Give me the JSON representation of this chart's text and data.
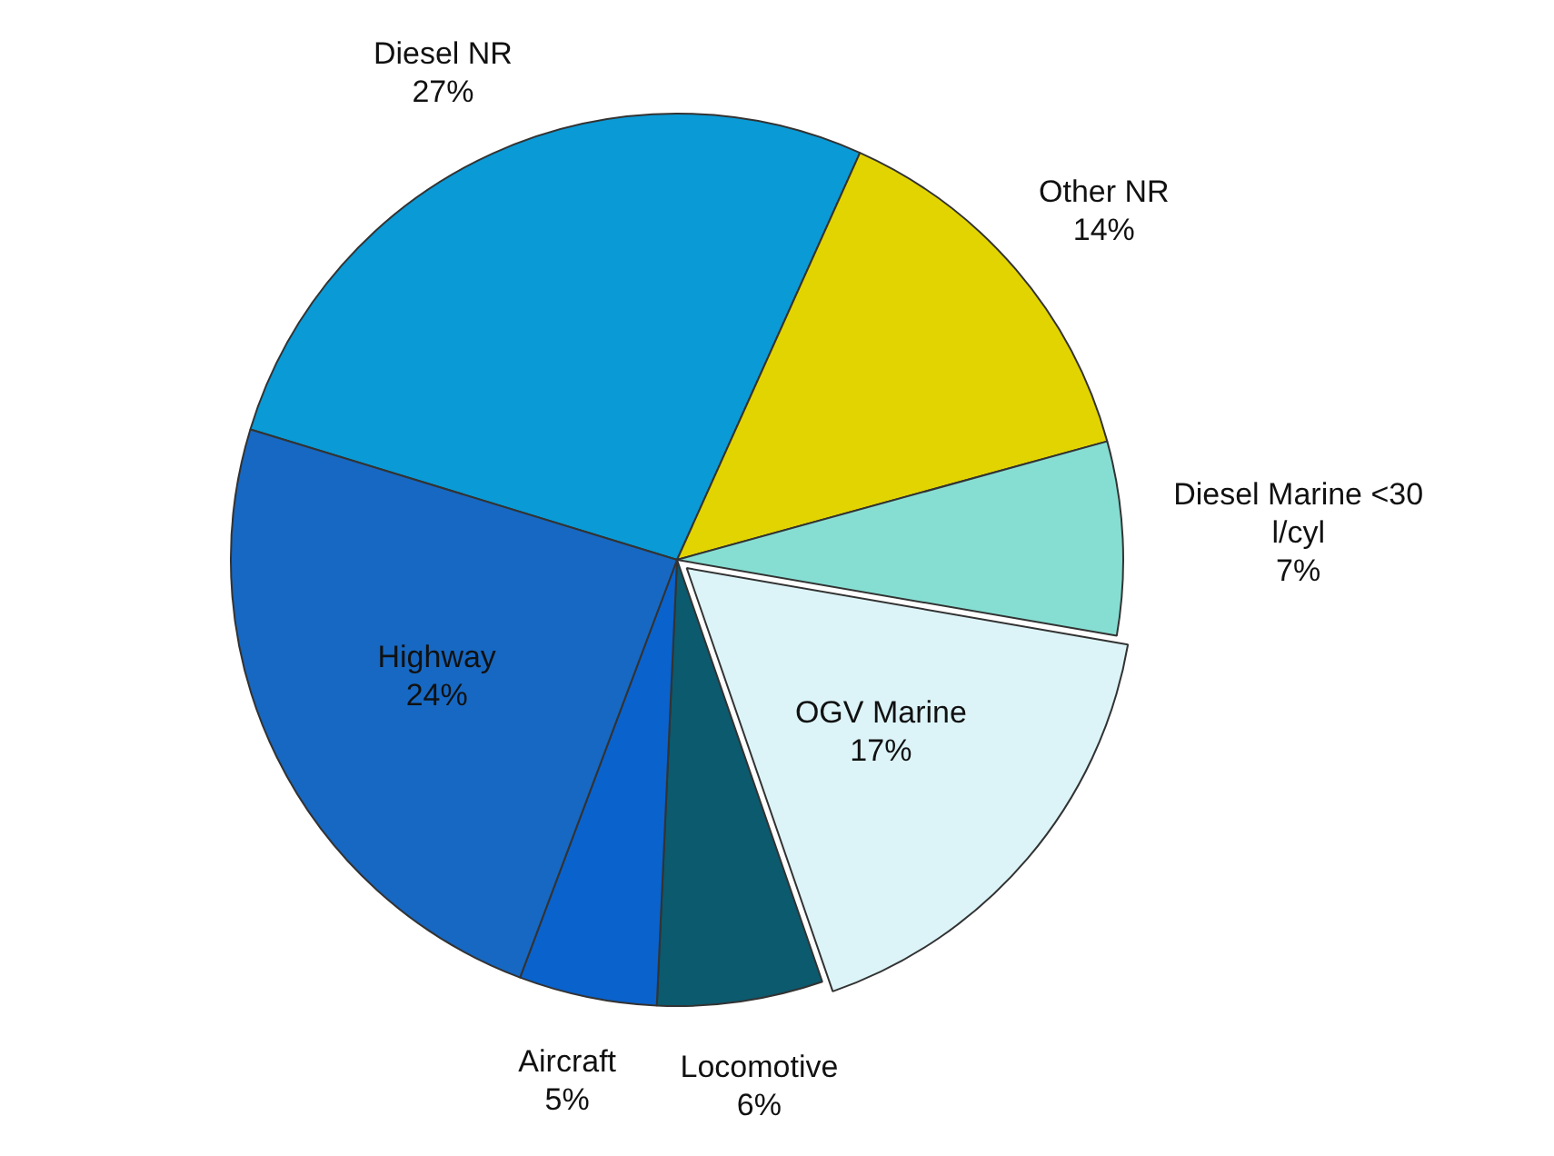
{
  "chart_data": {
    "type": "pie",
    "categories": [
      "Diesel NR",
      "Other NR",
      "Diesel Marine <30 l/cyl",
      "OGV Marine",
      "Locomotive",
      "Aircraft",
      "Highway"
    ],
    "values": [
      27,
      14,
      7,
      17,
      6,
      5,
      24
    ],
    "value_labels": [
      "27%",
      "14%",
      "7%",
      "17%",
      "6%",
      "5%",
      "24%"
    ],
    "colors": [
      "#0a9ad6",
      "#e2d400",
      "#86ded2",
      "#dcf4f8",
      "#0b5a6e",
      "#0a62cc",
      "#1768c2"
    ],
    "legend": false
  }
}
